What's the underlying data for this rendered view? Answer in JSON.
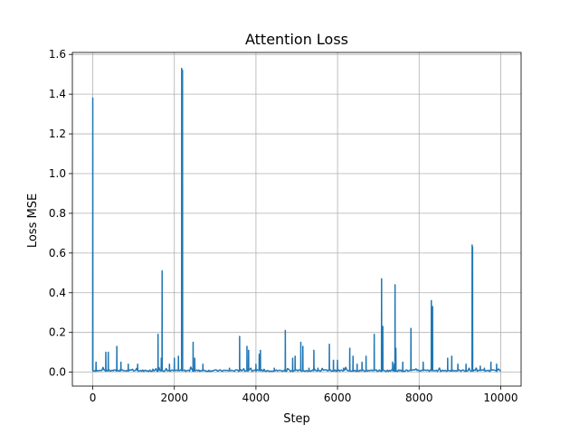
{
  "chart_data": {
    "type": "line",
    "title": "Attention Loss",
    "xlabel": "Step",
    "ylabel": "Loss MSE",
    "xlim": [
      -500,
      10500
    ],
    "ylim": [
      -0.07,
      1.61
    ],
    "x_ticks": [
      0,
      2000,
      4000,
      6000,
      8000,
      10000
    ],
    "x_tick_labels": [
      "0",
      "2000",
      "4000",
      "6000",
      "8000",
      "10000"
    ],
    "y_ticks": [
      0.0,
      0.2,
      0.4,
      0.6,
      0.8,
      1.0,
      1.2,
      1.4,
      1.6
    ],
    "y_tick_labels": [
      "0.0",
      "0.2",
      "0.4",
      "0.6",
      "0.8",
      "1.0",
      "1.2",
      "1.4",
      "1.6"
    ],
    "grid": true,
    "line_color": "#1f77b4",
    "baseline": 0.008,
    "series": [
      {
        "x": [
          0,
          80,
          320,
          380,
          590,
          690,
          870,
          1100,
          1600,
          1680,
          1700,
          1880,
          2000,
          2100,
          2180,
          2200,
          2460,
          2500,
          2700,
          3350,
          3600,
          3780,
          3820,
          4000,
          4080,
          4110,
          4450,
          4720,
          4900,
          4960,
          5100,
          5150,
          5300,
          5420,
          5520,
          5800,
          5900,
          6000,
          6150,
          6300,
          6380,
          6480,
          6600,
          6700,
          6900,
          7080,
          7110,
          7350,
          7390,
          7410,
          7430,
          7600,
          7800,
          8100,
          8300,
          8330,
          8700,
          8800,
          8950,
          9150,
          9300,
          9310,
          9500,
          9600,
          9760,
          9900
        ],
        "y": [
          1.38,
          0.05,
          0.1,
          0.1,
          0.13,
          0.05,
          0.04,
          0.04,
          0.19,
          0.07,
          0.51,
          0.04,
          0.07,
          0.08,
          1.53,
          1.52,
          0.15,
          0.07,
          0.04,
          0.02,
          0.18,
          0.13,
          0.11,
          0.04,
          0.09,
          0.11,
          0.02,
          0.21,
          0.07,
          0.08,
          0.15,
          0.13,
          0.02,
          0.11,
          0.02,
          0.14,
          0.06,
          0.06,
          0.02,
          0.12,
          0.08,
          0.04,
          0.05,
          0.08,
          0.19,
          0.47,
          0.23,
          0.05,
          0.04,
          0.44,
          0.12,
          0.05,
          0.22,
          0.05,
          0.36,
          0.33,
          0.07,
          0.08,
          0.04,
          0.04,
          0.64,
          0.63,
          0.03,
          0.02,
          0.05,
          0.04
        ]
      }
    ]
  }
}
